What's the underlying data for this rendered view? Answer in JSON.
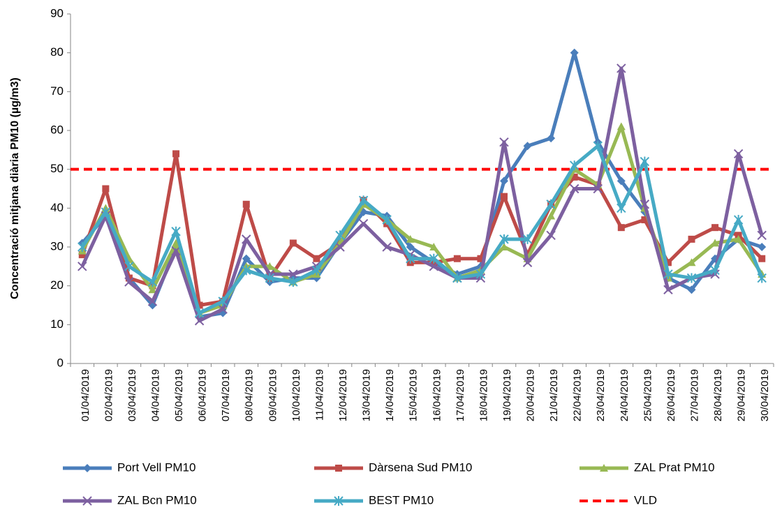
{
  "chart_data": {
    "type": "line",
    "y_label": "Concentració mitjana diària PM10 (µg/m3)",
    "categories": [
      "01/04/2019",
      "02/04/2019",
      "03/04/2019",
      "04/04/2019",
      "05/04/2019",
      "06/04/2019",
      "07/04/2019",
      "08/04/2019",
      "09/04/2019",
      "10/04/2019",
      "11/04/2019",
      "12/04/2019",
      "13/04/2019",
      "14/04/2019",
      "15/04/2019",
      "16/04/2019",
      "17/04/2019",
      "18/04/2019",
      "19/04/2019",
      "20/04/2019",
      "21/04/2019",
      "22/04/2019",
      "23/04/2019",
      "24/04/2019",
      "25/04/2019",
      "26/04/2019",
      "27/04/2019",
      "28/04/2019",
      "29/04/2019",
      "30/04/2019"
    ],
    "series": [
      {
        "name": "Port Vell PM10",
        "color": "#4a7ebb",
        "marker": "diamond",
        "values": [
          31,
          38,
          22,
          15,
          30,
          12,
          13,
          27,
          21,
          22,
          22,
          31,
          39,
          38,
          30,
          26,
          23,
          25,
          47,
          56,
          58,
          80,
          57,
          47,
          39,
          22,
          19,
          27,
          32,
          30
        ]
      },
      {
        "name": "Dàrsena Sud PM10",
        "color": "#be4b48",
        "marker": "square",
        "values": [
          28,
          45,
          22,
          20,
          54,
          15,
          16,
          41,
          22,
          31,
          27,
          31,
          42,
          36,
          26,
          26,
          27,
          27,
          43,
          28,
          41,
          48,
          46,
          35,
          37,
          26,
          32,
          35,
          33,
          27
        ]
      },
      {
        "name": "ZAL Prat PM10",
        "color": "#98b954",
        "marker": "triangle",
        "values": [
          29,
          40,
          27,
          19,
          31,
          13,
          15,
          25,
          25,
          21,
          23,
          31,
          41,
          37,
          32,
          30,
          22,
          24,
          30,
          27,
          38,
          50,
          46,
          61,
          40,
          22,
          26,
          31,
          32,
          23
        ]
      },
      {
        "name": "ZAL Bcn PM10",
        "color": "#7d60a0",
        "marker": "x",
        "values": [
          25,
          38,
          21,
          16,
          29,
          11,
          14,
          32,
          23,
          23,
          25,
          30,
          36,
          30,
          28,
          25,
          22,
          22,
          57,
          26,
          33,
          45,
          45,
          76,
          41,
          19,
          22,
          23,
          54,
          33
        ]
      },
      {
        "name": "BEST PM10",
        "color": "#46aac5",
        "marker": "asterisk",
        "values": [
          30,
          39,
          25,
          21,
          34,
          13,
          16,
          24,
          22,
          21,
          24,
          33,
          42,
          37,
          27,
          27,
          22,
          23,
          32,
          32,
          41,
          51,
          56,
          40,
          52,
          23,
          22,
          24,
          37,
          22
        ]
      }
    ],
    "limit": {
      "name": "VLD",
      "value": 50,
      "color": "#ff0000"
    },
    "ylim": [
      0,
      90
    ],
    "yticks": [
      0,
      10,
      20,
      30,
      40,
      50,
      60,
      70,
      80,
      90
    ],
    "grid": false
  }
}
